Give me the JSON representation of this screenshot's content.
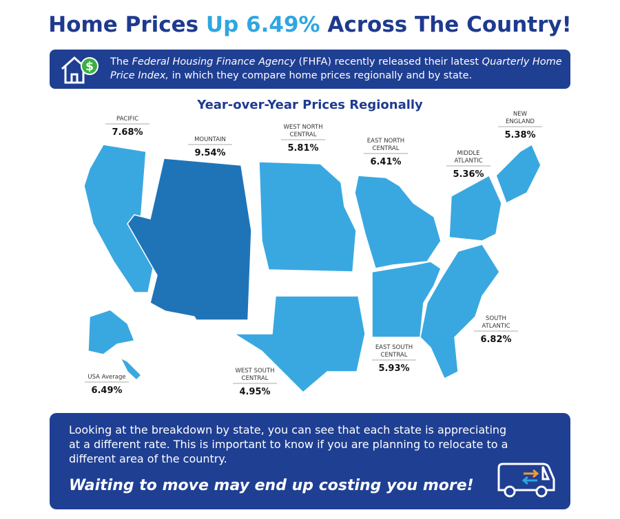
{
  "header": {
    "title_before": "Home Prices",
    "title_highlight": "Up 6.49%",
    "title_after": "Across The Country!"
  },
  "intro": {
    "parts": [
      {
        "text": "The ",
        "italic": false
      },
      {
        "text": "Federal Housing Finance Agency",
        "italic": true
      },
      {
        "text": " (FHFA) recently released their latest ",
        "italic": false
      },
      {
        "text": "Quarterly Home Price Index,",
        "italic": true
      },
      {
        "text": " in which they compare home prices regionally and by state.",
        "italic": false
      }
    ]
  },
  "map": {
    "heading": "Year-over-Year Prices Regionally",
    "regions": [
      {
        "label_lines": [
          "PACIFIC"
        ],
        "value": "7.68%"
      },
      {
        "label_lines": [
          "MOUNTAIN"
        ],
        "value": "9.54%"
      },
      {
        "label_lines": [
          "WEST NORTH",
          "CENTRAL"
        ],
        "value": "5.81%"
      },
      {
        "label_lines": [
          "EAST NORTH",
          "CENTRAL"
        ],
        "value": "6.41%"
      },
      {
        "label_lines": [
          "MIDDLE",
          "ATLANTIC"
        ],
        "value": "5.36%"
      },
      {
        "label_lines": [
          "NEW",
          "ENGLAND"
        ],
        "value": "5.38%"
      },
      {
        "label_lines": [
          "SOUTH",
          "ATLANTIC"
        ],
        "value": "6.82%"
      },
      {
        "label_lines": [
          "EAST SOUTH",
          "CENTRAL"
        ],
        "value": "5.93%"
      },
      {
        "label_lines": [
          "WEST SOUTH",
          "CENTRAL"
        ],
        "value": "4.95%"
      },
      {
        "label_lines": [
          "USA Average"
        ],
        "value": "6.49%"
      }
    ]
  },
  "footer": {
    "text": "Looking at the breakdown by state, you can see that each state is appreciating at a different rate. This is important to know if you are planning to relocate to a different area of the country.",
    "tagline": "Waiting to move may end up costing you more!"
  }
}
